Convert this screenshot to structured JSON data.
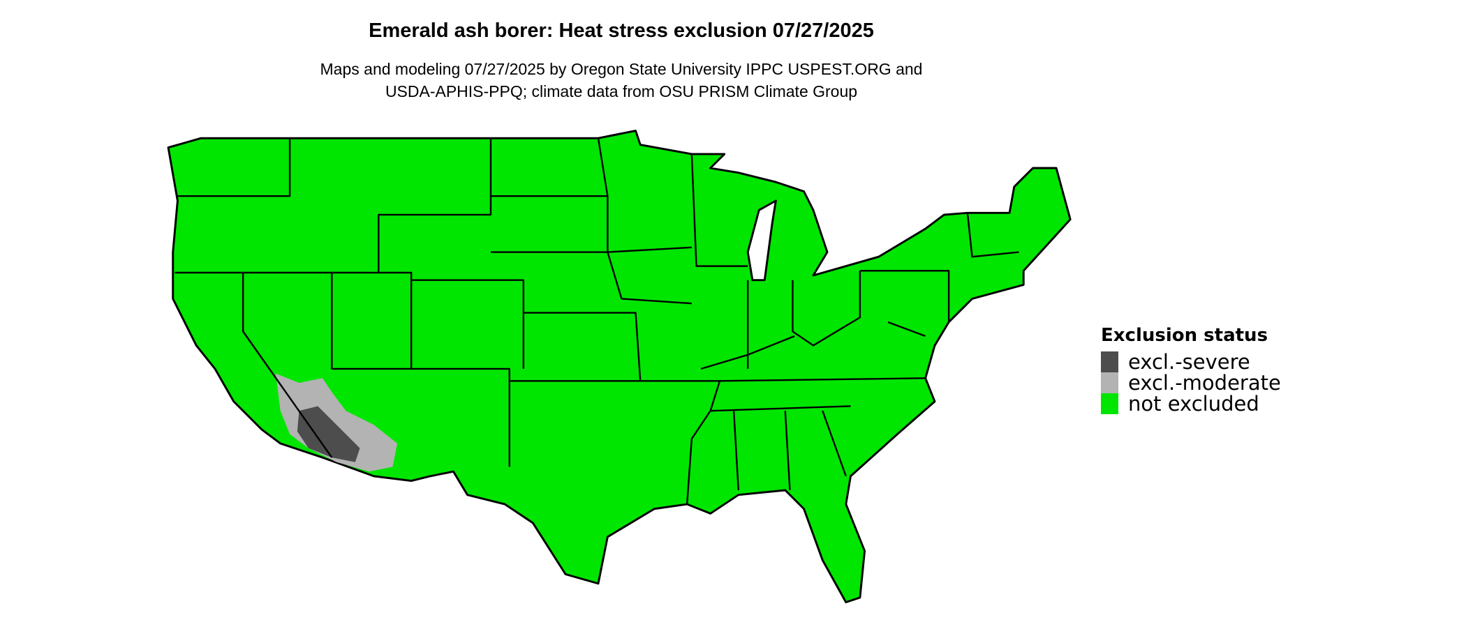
{
  "chart_data": {
    "type": "map",
    "title": "Emerald ash borer: Heat stress exclusion 07/27/2025",
    "subtitle_lines": [
      "Maps and modeling 07/27/2025 by Oregon State University IPPC USPEST.ORG and",
      "USDA-APHIS-PPQ; climate data from OSU PRISM Climate Group"
    ],
    "region": "Contiguous United States",
    "legend": {
      "title": "Exclusion status",
      "placement": "right",
      "entries": [
        {
          "label": "excl.-severe",
          "color": "#4d4d4d"
        },
        {
          "label": "excl.-moderate",
          "color": "#b3b3b3"
        },
        {
          "label": "not excluded",
          "color": "#00e600"
        }
      ]
    },
    "excluded_areas": "southwestern Arizona and southeastern California desert"
  }
}
